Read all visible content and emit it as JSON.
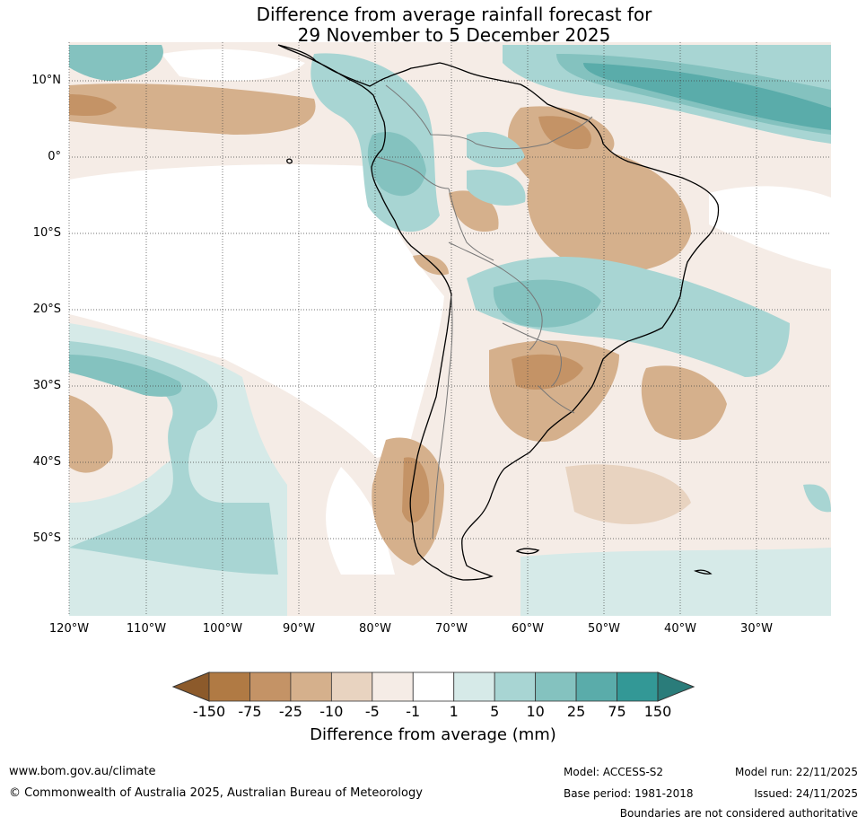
{
  "title": {
    "line1": "Difference from average rainfall forecast for",
    "line2": "29 November to 5 December 2025"
  },
  "map": {
    "lat_labels": [
      "10°N",
      "0°",
      "10°S",
      "20°S",
      "30°S",
      "40°S",
      "50°S"
    ],
    "lon_labels": [
      "120°W",
      "110°W",
      "100°W",
      "90°W",
      "80°W",
      "70°W",
      "60°W",
      "50°W",
      "40°W",
      "30°W"
    ]
  },
  "colorbar": {
    "ticks": [
      "-150",
      "-75",
      "-25",
      "-10",
      "-5",
      "-1",
      "1",
      "5",
      "10",
      "25",
      "75",
      "150"
    ],
    "colors": [
      "#8c5a2b",
      "#b07a44",
      "#c49366",
      "#d5b08c",
      "#e8d3c0",
      "#f5ece6",
      "#ffffff",
      "#d6eae8",
      "#a8d5d3",
      "#84c2bf",
      "#5aacaa",
      "#339896",
      "#2a7c7a"
    ],
    "label": "Difference from average (mm)"
  },
  "footer": {
    "website": "www.bom.gov.au/climate",
    "copyright": "© Commonwealth of Australia 2025, Australian Bureau of Meteorology",
    "model": "Model: ACCESS-S2",
    "base_period": "Base period: 1981-2018",
    "model_run": "Model run: 22/11/2025",
    "issued": "Issued: 24/11/2025",
    "disclaimer": "Boundaries are not considered authoritative"
  }
}
